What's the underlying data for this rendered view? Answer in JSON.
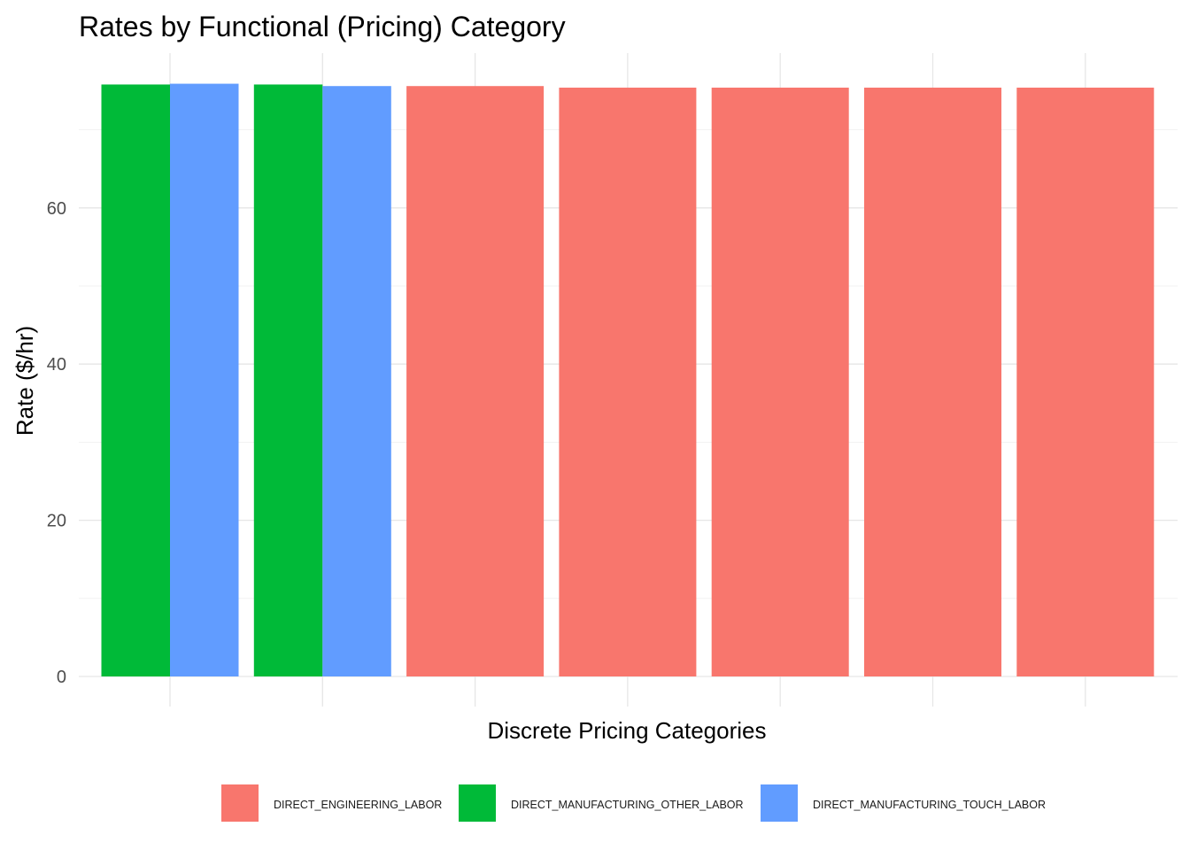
{
  "chart_data": {
    "type": "bar",
    "title": "Rates by Functional (Pricing) Category",
    "xlabel": "Discrete Pricing Categories",
    "ylabel": "Rate ($/hr)",
    "ylim": [
      0,
      76
    ],
    "yticks": [
      0,
      20,
      40,
      60
    ],
    "grid": true,
    "legend_position": "bottom",
    "x_tick_labels_shown": false,
    "num_groups": 7,
    "series": [
      {
        "name": "DIRECT_ENGINEERING_LABOR",
        "color": "#F8766D",
        "values": [
          null,
          null,
          75.6,
          75.4,
          75.4,
          75.4,
          75.4
        ]
      },
      {
        "name": "DIRECT_MANUFACTURING_OTHER_LABOR",
        "color": "#00BA38",
        "values": [
          75.8,
          75.8,
          null,
          null,
          null,
          null,
          null
        ]
      },
      {
        "name": "DIRECT_MANUFACTURING_TOUCH_LABOR",
        "color": "#619CFF",
        "values": [
          75.9,
          75.6,
          null,
          null,
          null,
          null,
          null
        ]
      }
    ]
  }
}
